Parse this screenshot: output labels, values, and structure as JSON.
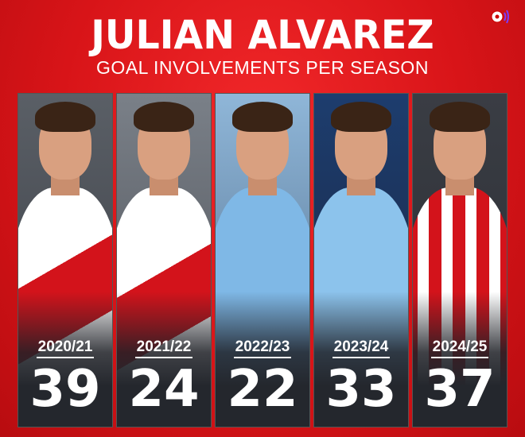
{
  "title": "JULIAN ALVAREZ",
  "subtitle": "GOAL INVOLVEMENTS PER SEASON",
  "colors": {
    "background": "#d81418",
    "card": "#2a2d33",
    "text": "#ffffff"
  },
  "seasons": [
    {
      "season": "2020/21",
      "value": "39",
      "kit": "river-plate"
    },
    {
      "season": "2021/22",
      "value": "24",
      "kit": "river-plate"
    },
    {
      "season": "2022/23",
      "value": "22",
      "kit": "man-city"
    },
    {
      "season": "2023/24",
      "value": "33",
      "kit": "man-city"
    },
    {
      "season": "2024/25",
      "value": "37",
      "kit": "atletico-madrid"
    }
  ]
}
